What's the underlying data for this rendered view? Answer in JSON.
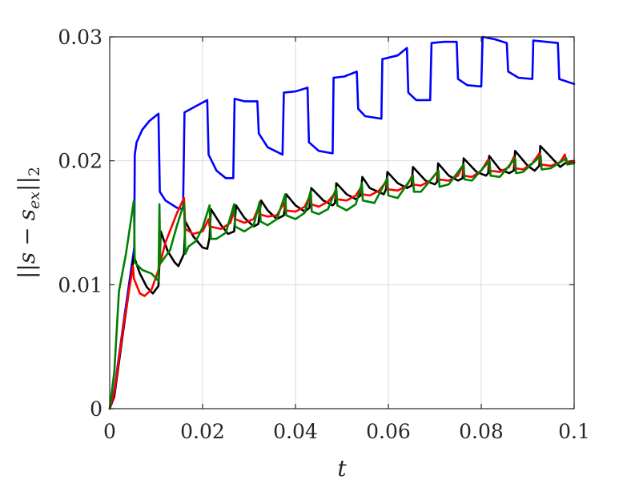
{
  "chart_data": {
    "type": "line",
    "title": "",
    "xlabel": "t",
    "ylabel": "||s − s_ex||_2",
    "ylabel_parts": {
      "open": "||",
      "s": "s",
      "minus": "−",
      "s2": "s",
      "sub": "ex",
      "close": "||",
      "subscript": "2"
    },
    "xlim": [
      0,
      0.1
    ],
    "ylim": [
      0,
      0.03
    ],
    "x_ticks": [
      0,
      0.02,
      0.04,
      0.06,
      0.08,
      0.1
    ],
    "x_tick_labels": [
      "0",
      "0.02",
      "0.04",
      "0.06",
      "0.08",
      "0.1"
    ],
    "y_ticks": [
      0,
      0.01,
      0.02,
      0.03
    ],
    "y_tick_labels": [
      "0",
      "0.01",
      "0.02",
      "0.03"
    ],
    "grid": true,
    "legend": false,
    "series": [
      {
        "color": "#0000ff",
        "points": [
          [
            0,
            0
          ],
          [
            0.001,
            0.0015
          ],
          [
            0.003,
            0.007
          ],
          [
            0.0053,
            0.013
          ],
          [
            0.0054,
            0.0205
          ],
          [
            0.0058,
            0.0215
          ],
          [
            0.007,
            0.0225
          ],
          [
            0.0085,
            0.0232
          ],
          [
            0.0105,
            0.0238
          ],
          [
            0.0108,
            0.0175
          ],
          [
            0.012,
            0.0168
          ],
          [
            0.0145,
            0.0162
          ],
          [
            0.0158,
            0.0161
          ],
          [
            0.0161,
            0.0239
          ],
          [
            0.018,
            0.0243
          ],
          [
            0.021,
            0.0249
          ],
          [
            0.0213,
            0.0205
          ],
          [
            0.023,
            0.0192
          ],
          [
            0.025,
            0.0186
          ],
          [
            0.0266,
            0.0186
          ],
          [
            0.0269,
            0.025
          ],
          [
            0.029,
            0.0248
          ],
          [
            0.0318,
            0.0248
          ],
          [
            0.0321,
            0.0222
          ],
          [
            0.034,
            0.0211
          ],
          [
            0.0372,
            0.0205
          ],
          [
            0.0375,
            0.0255
          ],
          [
            0.04,
            0.0256
          ],
          [
            0.0426,
            0.0259
          ],
          [
            0.0429,
            0.0215
          ],
          [
            0.045,
            0.0208
          ],
          [
            0.048,
            0.0206
          ],
          [
            0.0482,
            0.0267
          ],
          [
            0.0505,
            0.0268
          ],
          [
            0.0532,
            0.0272
          ],
          [
            0.0535,
            0.0242
          ],
          [
            0.055,
            0.0236
          ],
          [
            0.0585,
            0.0234
          ],
          [
            0.0587,
            0.0282
          ],
          [
            0.062,
            0.0285
          ],
          [
            0.064,
            0.0291
          ],
          [
            0.0643,
            0.0255
          ],
          [
            0.066,
            0.0249
          ],
          [
            0.069,
            0.0249
          ],
          [
            0.0693,
            0.0295
          ],
          [
            0.072,
            0.0296
          ],
          [
            0.0747,
            0.0296
          ],
          [
            0.075,
            0.0266
          ],
          [
            0.077,
            0.0261
          ],
          [
            0.08,
            0.026
          ],
          [
            0.0803,
            0.03
          ],
          [
            0.083,
            0.0298
          ],
          [
            0.0855,
            0.0295
          ],
          [
            0.0858,
            0.0272
          ],
          [
            0.088,
            0.0267
          ],
          [
            0.091,
            0.0266
          ],
          [
            0.0912,
            0.0297
          ],
          [
            0.094,
            0.0296
          ],
          [
            0.0965,
            0.0295
          ],
          [
            0.0968,
            0.0266
          ],
          [
            0.1,
            0.0262
          ]
        ]
      },
      {
        "color": "#000000",
        "points": [
          [
            0,
            0
          ],
          [
            0.001,
            0.001
          ],
          [
            0.003,
            0.0065
          ],
          [
            0.0052,
            0.0123
          ],
          [
            0.0065,
            0.0109
          ],
          [
            0.008,
            0.0098
          ],
          [
            0.0093,
            0.0093
          ],
          [
            0.0105,
            0.0099
          ],
          [
            0.011,
            0.0143
          ],
          [
            0.0125,
            0.0127
          ],
          [
            0.014,
            0.0118
          ],
          [
            0.0148,
            0.0115
          ],
          [
            0.016,
            0.0125
          ],
          [
            0.0163,
            0.0151
          ],
          [
            0.018,
            0.0139
          ],
          [
            0.02,
            0.013
          ],
          [
            0.021,
            0.0129
          ],
          [
            0.0215,
            0.0138
          ],
          [
            0.0218,
            0.0161
          ],
          [
            0.024,
            0.0148
          ],
          [
            0.0255,
            0.0141
          ],
          [
            0.0268,
            0.0143
          ],
          [
            0.0272,
            0.0164
          ],
          [
            0.029,
            0.0154
          ],
          [
            0.031,
            0.0147
          ],
          [
            0.032,
            0.0149
          ],
          [
            0.0326,
            0.0168
          ],
          [
            0.034,
            0.016
          ],
          [
            0.036,
            0.0153
          ],
          [
            0.0375,
            0.0156
          ],
          [
            0.038,
            0.0173
          ],
          [
            0.04,
            0.0164
          ],
          [
            0.042,
            0.0159
          ],
          [
            0.043,
            0.0162
          ],
          [
            0.0434,
            0.0178
          ],
          [
            0.046,
            0.0168
          ],
          [
            0.048,
            0.0164
          ],
          [
            0.0485,
            0.0166
          ],
          [
            0.0488,
            0.0182
          ],
          [
            0.051,
            0.0173
          ],
          [
            0.053,
            0.0169
          ],
          [
            0.054,
            0.0172
          ],
          [
            0.0544,
            0.0187
          ],
          [
            0.056,
            0.0178
          ],
          [
            0.059,
            0.0173
          ],
          [
            0.0595,
            0.0177
          ],
          [
            0.0598,
            0.0191
          ],
          [
            0.062,
            0.0182
          ],
          [
            0.064,
            0.0178
          ],
          [
            0.065,
            0.018
          ],
          [
            0.0653,
            0.0195
          ],
          [
            0.068,
            0.0184
          ],
          [
            0.07,
            0.0181
          ],
          [
            0.0705,
            0.0183
          ],
          [
            0.0707,
            0.0198
          ],
          [
            0.073,
            0.0188
          ],
          [
            0.075,
            0.0184
          ],
          [
            0.076,
            0.0186
          ],
          [
            0.0762,
            0.0202
          ],
          [
            0.079,
            0.0191
          ],
          [
            0.081,
            0.0188
          ],
          [
            0.0815,
            0.019
          ],
          [
            0.0817,
            0.0204
          ],
          [
            0.084,
            0.0193
          ],
          [
            0.086,
            0.019
          ],
          [
            0.087,
            0.0192
          ],
          [
            0.0873,
            0.0208
          ],
          [
            0.09,
            0.0196
          ],
          [
            0.0915,
            0.0192
          ],
          [
            0.0925,
            0.0196
          ],
          [
            0.0927,
            0.0212
          ],
          [
            0.095,
            0.0203
          ],
          [
            0.097,
            0.0195
          ],
          [
            0.098,
            0.0198
          ],
          [
            0.1,
            0.0199
          ]
        ]
      },
      {
        "color": "#ff0000",
        "points": [
          [
            0,
            0
          ],
          [
            0.001,
            0.0013
          ],
          [
            0.003,
            0.0068
          ],
          [
            0.005,
            0.0115
          ],
          [
            0.0052,
            0.0105
          ],
          [
            0.0065,
            0.0093
          ],
          [
            0.0075,
            0.0091
          ],
          [
            0.009,
            0.0096
          ],
          [
            0.0105,
            0.0112
          ],
          [
            0.012,
            0.0134
          ],
          [
            0.0145,
            0.0158
          ],
          [
            0.016,
            0.017
          ],
          [
            0.0163,
            0.0145
          ],
          [
            0.018,
            0.0141
          ],
          [
            0.02,
            0.0143
          ],
          [
            0.0213,
            0.0153
          ],
          [
            0.0215,
            0.0147
          ],
          [
            0.024,
            0.0145
          ],
          [
            0.026,
            0.015
          ],
          [
            0.0268,
            0.016
          ],
          [
            0.027,
            0.0153
          ],
          [
            0.029,
            0.015
          ],
          [
            0.031,
            0.0153
          ],
          [
            0.032,
            0.0162
          ],
          [
            0.0322,
            0.0157
          ],
          [
            0.034,
            0.0155
          ],
          [
            0.036,
            0.0156
          ],
          [
            0.0375,
            0.0166
          ],
          [
            0.0377,
            0.016
          ],
          [
            0.04,
            0.0159
          ],
          [
            0.042,
            0.0163
          ],
          [
            0.043,
            0.0171
          ],
          [
            0.0433,
            0.0165
          ],
          [
            0.045,
            0.0163
          ],
          [
            0.047,
            0.0167
          ],
          [
            0.0485,
            0.0174
          ],
          [
            0.0487,
            0.0169
          ],
          [
            0.051,
            0.0168
          ],
          [
            0.053,
            0.0172
          ],
          [
            0.054,
            0.0178
          ],
          [
            0.0543,
            0.0173
          ],
          [
            0.056,
            0.0172
          ],
          [
            0.058,
            0.0176
          ],
          [
            0.0595,
            0.0183
          ],
          [
            0.0598,
            0.0177
          ],
          [
            0.062,
            0.0176
          ],
          [
            0.064,
            0.018
          ],
          [
            0.065,
            0.0187
          ],
          [
            0.0653,
            0.0181
          ],
          [
            0.067,
            0.018
          ],
          [
            0.069,
            0.0184
          ],
          [
            0.0705,
            0.0191
          ],
          [
            0.0708,
            0.0185
          ],
          [
            0.073,
            0.0184
          ],
          [
            0.075,
            0.0188
          ],
          [
            0.076,
            0.0196
          ],
          [
            0.0762,
            0.0188
          ],
          [
            0.078,
            0.0187
          ],
          [
            0.08,
            0.0192
          ],
          [
            0.0815,
            0.0201
          ],
          [
            0.0818,
            0.0192
          ],
          [
            0.084,
            0.0191
          ],
          [
            0.086,
            0.0195
          ],
          [
            0.087,
            0.0203
          ],
          [
            0.0873,
            0.0194
          ],
          [
            0.089,
            0.0193
          ],
          [
            0.091,
            0.0198
          ],
          [
            0.0925,
            0.0206
          ],
          [
            0.0928,
            0.0197
          ],
          [
            0.095,
            0.0196
          ],
          [
            0.097,
            0.0199
          ],
          [
            0.098,
            0.0205
          ],
          [
            0.0983,
            0.0199
          ],
          [
            0.1,
            0.02
          ]
        ]
      },
      {
        "color": "#008000",
        "points": [
          [
            0,
            0
          ],
          [
            0.001,
            0.003
          ],
          [
            0.002,
            0.0095
          ],
          [
            0.0035,
            0.0125
          ],
          [
            0.0052,
            0.0168
          ],
          [
            0.0054,
            0.0118
          ],
          [
            0.007,
            0.0112
          ],
          [
            0.009,
            0.0109
          ],
          [
            0.0105,
            0.0103
          ],
          [
            0.0107,
            0.0165
          ],
          [
            0.0109,
            0.0117
          ],
          [
            0.013,
            0.0128
          ],
          [
            0.0145,
            0.0148
          ],
          [
            0.016,
            0.0166
          ],
          [
            0.0163,
            0.0125
          ],
          [
            0.017,
            0.0131
          ],
          [
            0.0185,
            0.0135
          ],
          [
            0.02,
            0.0146
          ],
          [
            0.0215,
            0.0164
          ],
          [
            0.0218,
            0.0137
          ],
          [
            0.023,
            0.0137
          ],
          [
            0.025,
            0.0142
          ],
          [
            0.0268,
            0.0165
          ],
          [
            0.027,
            0.0147
          ],
          [
            0.029,
            0.0143
          ],
          [
            0.031,
            0.0148
          ],
          [
            0.0323,
            0.0167
          ],
          [
            0.0325,
            0.0151
          ],
          [
            0.034,
            0.0148
          ],
          [
            0.036,
            0.0153
          ],
          [
            0.0378,
            0.0173
          ],
          [
            0.038,
            0.0156
          ],
          [
            0.04,
            0.0153
          ],
          [
            0.042,
            0.0158
          ],
          [
            0.0433,
            0.0176
          ],
          [
            0.0435,
            0.0159
          ],
          [
            0.045,
            0.0157
          ],
          [
            0.047,
            0.0161
          ],
          [
            0.0488,
            0.0178
          ],
          [
            0.049,
            0.0164
          ],
          [
            0.051,
            0.016
          ],
          [
            0.053,
            0.0165
          ],
          [
            0.0543,
            0.0182
          ],
          [
            0.0545,
            0.0168
          ],
          [
            0.057,
            0.0166
          ],
          [
            0.0598,
            0.0186
          ],
          [
            0.06,
            0.0172
          ],
          [
            0.062,
            0.017
          ],
          [
            0.0653,
            0.0188
          ],
          [
            0.0655,
            0.0175
          ],
          [
            0.067,
            0.0175
          ],
          [
            0.0708,
            0.0192
          ],
          [
            0.071,
            0.0179
          ],
          [
            0.073,
            0.0181
          ],
          [
            0.0762,
            0.0197
          ],
          [
            0.0764,
            0.0185
          ],
          [
            0.078,
            0.0184
          ],
          [
            0.0818,
            0.02
          ],
          [
            0.082,
            0.0188
          ],
          [
            0.084,
            0.0187
          ],
          [
            0.0873,
            0.0202
          ],
          [
            0.0875,
            0.019
          ],
          [
            0.089,
            0.0191
          ],
          [
            0.0928,
            0.0204
          ],
          [
            0.093,
            0.0193
          ],
          [
            0.095,
            0.0194
          ],
          [
            0.0983,
            0.0202
          ],
          [
            0.0985,
            0.0197
          ],
          [
            0.1,
            0.0198
          ]
        ]
      }
    ]
  }
}
